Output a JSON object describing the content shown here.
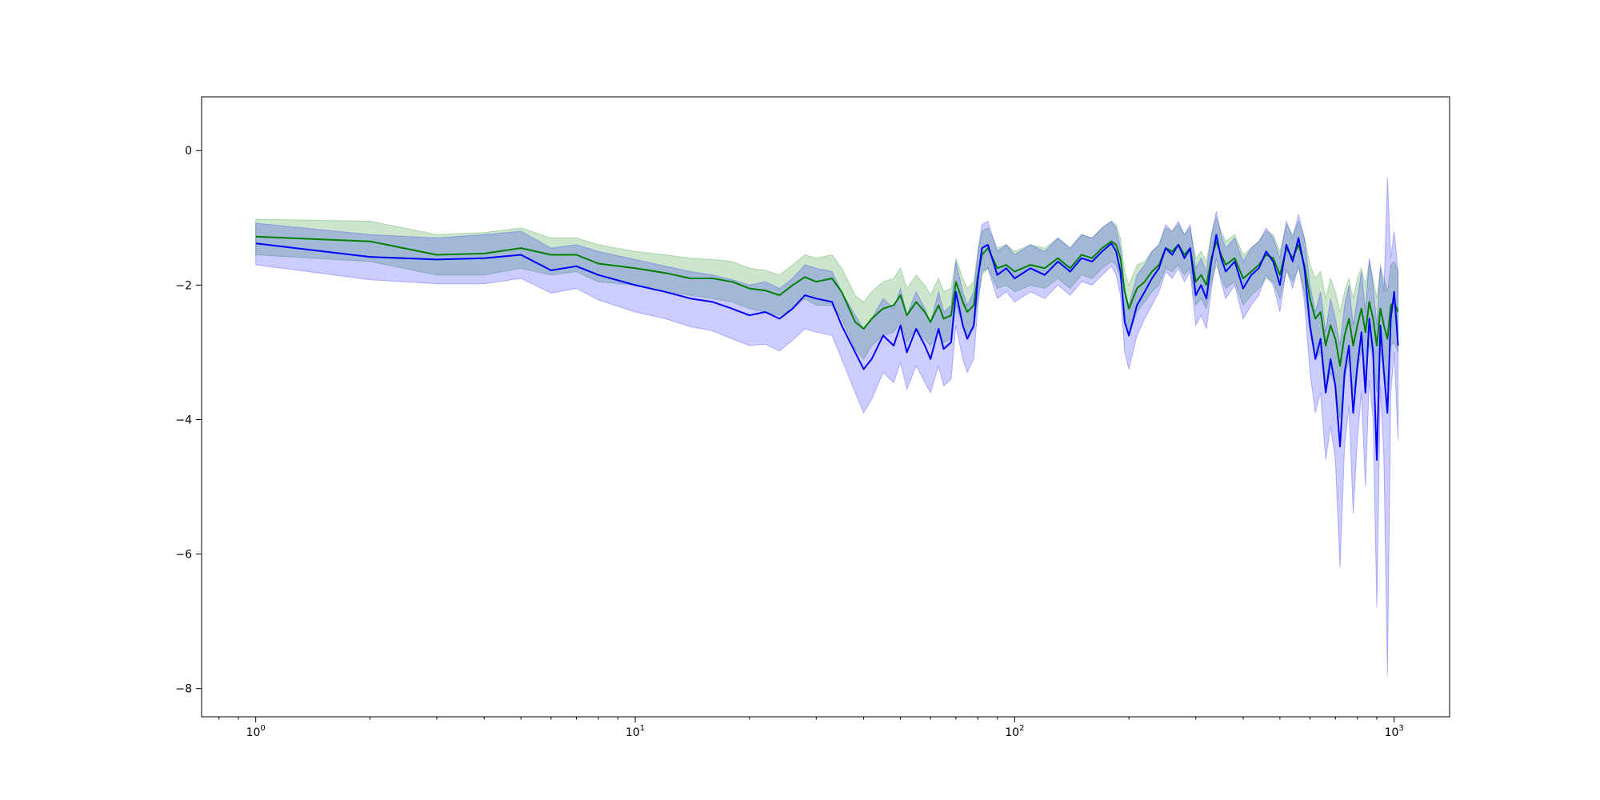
{
  "chart_data": {
    "type": "line",
    "title": "",
    "xlabel": "",
    "ylabel": "",
    "xscale": "log",
    "xlim": [
      0.72,
      1400
    ],
    "ylim": [
      -8.42,
      0.8
    ],
    "grid": false,
    "x_ticks": [
      {
        "value": 1,
        "base": "10",
        "exp": "0"
      },
      {
        "value": 10,
        "base": "10",
        "exp": "1"
      },
      {
        "value": 100,
        "base": "10",
        "exp": "2"
      },
      {
        "value": 1000,
        "base": "10",
        "exp": "3"
      }
    ],
    "y_ticks": [
      {
        "value": 0,
        "label": "0"
      },
      {
        "value": -2,
        "label": "−2"
      },
      {
        "value": -4,
        "label": "−4"
      },
      {
        "value": -6,
        "label": "−6"
      },
      {
        "value": -8,
        "label": "−8"
      }
    ],
    "series": [
      {
        "color": "#008000",
        "band_color": "#008000",
        "band_opacity": 0.2,
        "x": [
          1,
          2,
          3,
          4,
          5,
          6,
          7,
          8,
          10,
          12,
          14,
          16,
          18,
          20,
          22,
          24,
          26,
          28,
          30,
          33,
          35,
          38,
          40,
          42,
          45,
          48,
          50,
          52,
          55,
          58,
          60,
          63,
          65,
          68,
          70,
          73,
          75,
          78,
          80,
          82,
          85,
          90,
          95,
          100,
          110,
          120,
          130,
          140,
          150,
          160,
          170,
          180,
          185,
          190,
          195,
          200,
          210,
          220,
          230,
          240,
          250,
          260,
          270,
          280,
          290,
          300,
          310,
          320,
          330,
          340,
          350,
          360,
          380,
          400,
          420,
          440,
          460,
          480,
          500,
          520,
          540,
          560,
          580,
          600,
          620,
          640,
          660,
          680,
          700,
          720,
          740,
          760,
          780,
          800,
          820,
          840,
          860,
          880,
          900,
          920,
          940,
          960,
          980,
          1000,
          1024
        ],
        "mean": [
          -1.28,
          -1.35,
          -1.55,
          -1.53,
          -1.45,
          -1.55,
          -1.55,
          -1.68,
          -1.75,
          -1.82,
          -1.9,
          -1.9,
          -1.95,
          -2.05,
          -2.08,
          -2.15,
          -2.0,
          -1.88,
          -1.95,
          -1.9,
          -2.1,
          -2.55,
          -2.65,
          -2.5,
          -2.35,
          -2.3,
          -2.15,
          -2.45,
          -2.25,
          -2.4,
          -2.55,
          -2.3,
          -2.5,
          -2.45,
          -1.95,
          -2.25,
          -2.4,
          -2.3,
          -1.85,
          -1.55,
          -1.45,
          -1.75,
          -1.7,
          -1.8,
          -1.7,
          -1.75,
          -1.6,
          -1.75,
          -1.55,
          -1.6,
          -1.45,
          -1.35,
          -1.4,
          -1.6,
          -2.1,
          -2.35,
          -2.05,
          -1.95,
          -1.8,
          -1.7,
          -1.45,
          -1.5,
          -1.4,
          -1.55,
          -1.45,
          -1.95,
          -1.85,
          -2.0,
          -1.6,
          -1.35,
          -1.55,
          -1.7,
          -1.6,
          -1.9,
          -1.8,
          -1.7,
          -1.55,
          -1.6,
          -1.85,
          -1.45,
          -1.6,
          -1.4,
          -1.7,
          -2.2,
          -2.5,
          -2.4,
          -2.9,
          -2.6,
          -2.8,
          -3.2,
          -2.75,
          -2.5,
          -2.9,
          -2.6,
          -2.35,
          -2.7,
          -2.25,
          -2.5,
          -2.9,
          -2.35,
          -2.6,
          -2.8,
          -2.3,
          -2.25,
          -2.4
        ],
        "lower": [
          -1.55,
          -1.65,
          -1.85,
          -1.85,
          -1.75,
          -1.85,
          -1.8,
          -1.95,
          -2.0,
          -2.1,
          -2.15,
          -2.2,
          -2.25,
          -2.35,
          -2.4,
          -2.45,
          -2.35,
          -2.2,
          -2.3,
          -2.3,
          -2.5,
          -2.95,
          -3.1,
          -2.9,
          -2.75,
          -2.7,
          -2.55,
          -2.85,
          -2.65,
          -2.8,
          -2.9,
          -2.7,
          -2.85,
          -2.8,
          -2.3,
          -2.6,
          -2.75,
          -2.65,
          -2.2,
          -1.85,
          -1.75,
          -2.05,
          -2.0,
          -2.1,
          -2.0,
          -2.05,
          -1.9,
          -2.05,
          -1.85,
          -1.9,
          -1.75,
          -1.65,
          -1.7,
          -1.9,
          -2.4,
          -2.75,
          -2.4,
          -2.25,
          -2.1,
          -2.0,
          -1.75,
          -1.8,
          -1.7,
          -1.85,
          -1.75,
          -2.3,
          -2.2,
          -2.35,
          -1.95,
          -1.7,
          -1.9,
          -2.05,
          -1.95,
          -2.3,
          -2.15,
          -2.05,
          -1.9,
          -1.95,
          -2.2,
          -1.8,
          -1.95,
          -1.75,
          -2.1,
          -2.7,
          -3.1,
          -3.0,
          -3.6,
          -3.3,
          -3.5,
          -4.0,
          -3.4,
          -3.1,
          -3.6,
          -3.3,
          -2.95,
          -3.4,
          -2.85,
          -3.1,
          -3.6,
          -2.95,
          -3.3,
          -3.5,
          -2.9,
          -2.85,
          -3.0
        ],
        "upper": [
          -1.02,
          -1.05,
          -1.25,
          -1.22,
          -1.15,
          -1.3,
          -1.3,
          -1.4,
          -1.5,
          -1.55,
          -1.6,
          -1.62,
          -1.65,
          -1.75,
          -1.78,
          -1.85,
          -1.7,
          -1.55,
          -1.6,
          -1.55,
          -1.75,
          -2.15,
          -2.25,
          -2.1,
          -1.95,
          -1.9,
          -1.75,
          -2.05,
          -1.85,
          -2.0,
          -2.15,
          -1.9,
          -2.1,
          -2.05,
          -1.6,
          -1.9,
          -2.05,
          -1.95,
          -1.5,
          -1.2,
          -1.15,
          -1.45,
          -1.4,
          -1.5,
          -1.4,
          -1.45,
          -1.3,
          -1.45,
          -1.25,
          -1.3,
          -1.15,
          -1.05,
          -1.1,
          -1.3,
          -1.8,
          -2.0,
          -1.7,
          -1.65,
          -1.5,
          -1.4,
          -1.15,
          -1.2,
          -1.1,
          -1.25,
          -1.15,
          -1.6,
          -1.5,
          -1.65,
          -1.25,
          -1.0,
          -1.2,
          -1.35,
          -1.25,
          -1.55,
          -1.45,
          -1.35,
          -1.2,
          -1.25,
          -1.5,
          -1.1,
          -1.25,
          -1.05,
          -1.3,
          -1.7,
          -1.9,
          -1.8,
          -2.2,
          -1.9,
          -2.1,
          -2.4,
          -2.1,
          -1.9,
          -2.2,
          -1.9,
          -1.75,
          -2.0,
          -1.65,
          -1.9,
          -2.2,
          -1.75,
          -1.9,
          -2.1,
          -1.7,
          -1.65,
          -1.8
        ]
      },
      {
        "color": "#0000ff",
        "band_color": "#0000ff",
        "band_opacity": 0.2,
        "x": [
          1,
          2,
          3,
          4,
          5,
          6,
          7,
          8,
          10,
          12,
          14,
          16,
          18,
          20,
          22,
          24,
          26,
          28,
          30,
          33,
          35,
          38,
          40,
          42,
          45,
          48,
          50,
          52,
          55,
          58,
          60,
          63,
          65,
          68,
          70,
          73,
          75,
          78,
          80,
          82,
          85,
          90,
          95,
          100,
          110,
          120,
          130,
          140,
          150,
          160,
          170,
          180,
          185,
          190,
          195,
          200,
          210,
          220,
          230,
          240,
          250,
          260,
          270,
          280,
          290,
          300,
          310,
          320,
          330,
          340,
          350,
          360,
          380,
          400,
          420,
          440,
          460,
          480,
          500,
          520,
          540,
          560,
          580,
          600,
          620,
          640,
          660,
          680,
          700,
          720,
          740,
          760,
          780,
          800,
          820,
          840,
          860,
          880,
          900,
          920,
          940,
          960,
          980,
          1000,
          1024
        ],
        "mean": [
          -1.38,
          -1.58,
          -1.62,
          -1.6,
          -1.55,
          -1.78,
          -1.72,
          -1.85,
          -2.0,
          -2.1,
          -2.2,
          -2.25,
          -2.35,
          -2.45,
          -2.4,
          -2.5,
          -2.35,
          -2.15,
          -2.2,
          -2.25,
          -2.6,
          -3.0,
          -3.25,
          -3.1,
          -2.75,
          -2.9,
          -2.6,
          -3.0,
          -2.65,
          -2.9,
          -3.1,
          -2.65,
          -2.95,
          -2.85,
          -2.1,
          -2.6,
          -2.8,
          -2.6,
          -1.9,
          -1.45,
          -1.4,
          -1.85,
          -1.75,
          -1.9,
          -1.75,
          -1.85,
          -1.65,
          -1.8,
          -1.6,
          -1.65,
          -1.5,
          -1.38,
          -1.5,
          -1.8,
          -2.55,
          -2.75,
          -2.3,
          -2.1,
          -1.9,
          -1.75,
          -1.45,
          -1.55,
          -1.4,
          -1.6,
          -1.45,
          -2.15,
          -2.0,
          -2.2,
          -1.65,
          -1.25,
          -1.6,
          -1.8,
          -1.65,
          -2.05,
          -1.85,
          -1.75,
          -1.5,
          -1.65,
          -2.0,
          -1.4,
          -1.65,
          -1.3,
          -1.75,
          -2.6,
          -3.1,
          -2.8,
          -3.6,
          -3.1,
          -3.5,
          -4.4,
          -3.3,
          -2.9,
          -3.9,
          -3.2,
          -2.7,
          -3.6,
          -2.5,
          -3.0,
          -4.6,
          -2.6,
          -3.3,
          -3.9,
          -2.5,
          -2.1,
          -2.9
        ],
        "lower": [
          -1.7,
          -1.92,
          -1.98,
          -1.98,
          -1.9,
          -2.12,
          -2.05,
          -2.22,
          -2.4,
          -2.5,
          -2.62,
          -2.68,
          -2.8,
          -2.9,
          -2.88,
          -2.98,
          -2.82,
          -2.65,
          -2.7,
          -2.75,
          -3.1,
          -3.6,
          -3.9,
          -3.7,
          -3.3,
          -3.45,
          -3.15,
          -3.55,
          -3.2,
          -3.45,
          -3.6,
          -3.2,
          -3.5,
          -3.4,
          -2.6,
          -3.1,
          -3.3,
          -3.1,
          -2.3,
          -1.8,
          -1.75,
          -2.2,
          -2.1,
          -2.25,
          -2.1,
          -2.2,
          -2.0,
          -2.15,
          -1.95,
          -2.0,
          -1.85,
          -1.72,
          -1.85,
          -2.15,
          -3.0,
          -3.25,
          -2.75,
          -2.5,
          -2.3,
          -2.1,
          -1.8,
          -1.9,
          -1.75,
          -1.95,
          -1.8,
          -2.6,
          -2.45,
          -2.65,
          -2.05,
          -1.6,
          -1.95,
          -2.2,
          -2.0,
          -2.5,
          -2.3,
          -2.15,
          -1.85,
          -2.0,
          -2.4,
          -1.75,
          -2.05,
          -1.7,
          -2.25,
          -3.3,
          -3.9,
          -3.6,
          -4.6,
          -4.1,
          -4.6,
          -6.2,
          -4.4,
          -3.8,
          -5.4,
          -4.3,
          -3.6,
          -5.0,
          -3.4,
          -4.0,
          -6.8,
          -3.5,
          -4.6,
          -7.8,
          -3.6,
          -3.0,
          -4.3
        ],
        "upper": [
          -1.08,
          -1.25,
          -1.3,
          -1.25,
          -1.2,
          -1.45,
          -1.4,
          -1.5,
          -1.62,
          -1.72,
          -1.8,
          -1.85,
          -1.92,
          -2.0,
          -1.95,
          -2.05,
          -1.9,
          -1.7,
          -1.75,
          -1.8,
          -2.1,
          -2.45,
          -2.65,
          -2.5,
          -2.2,
          -2.35,
          -2.05,
          -2.45,
          -2.1,
          -2.35,
          -2.55,
          -2.1,
          -2.4,
          -2.3,
          -1.65,
          -2.1,
          -2.3,
          -2.1,
          -1.5,
          -1.1,
          -1.05,
          -1.5,
          -1.4,
          -1.55,
          -1.4,
          -1.5,
          -1.3,
          -1.45,
          -1.25,
          -1.3,
          -1.15,
          -1.05,
          -1.15,
          -1.45,
          -2.1,
          -2.3,
          -1.85,
          -1.7,
          -1.5,
          -1.4,
          -1.1,
          -1.2,
          -1.05,
          -1.25,
          -1.1,
          -1.75,
          -1.6,
          -1.8,
          -1.25,
          -0.9,
          -1.25,
          -1.45,
          -1.3,
          -1.65,
          -1.45,
          -1.35,
          -1.15,
          -1.3,
          -1.6,
          -1.05,
          -1.3,
          -0.95,
          -1.3,
          -2.0,
          -2.4,
          -2.1,
          -2.7,
          -2.2,
          -2.5,
          -2.9,
          -2.3,
          -2.0,
          -2.6,
          -2.2,
          -1.8,
          -2.4,
          -1.6,
          -2.0,
          -2.6,
          -1.7,
          -2.1,
          -0.4,
          -1.6,
          -1.2,
          -1.8
        ]
      }
    ]
  }
}
